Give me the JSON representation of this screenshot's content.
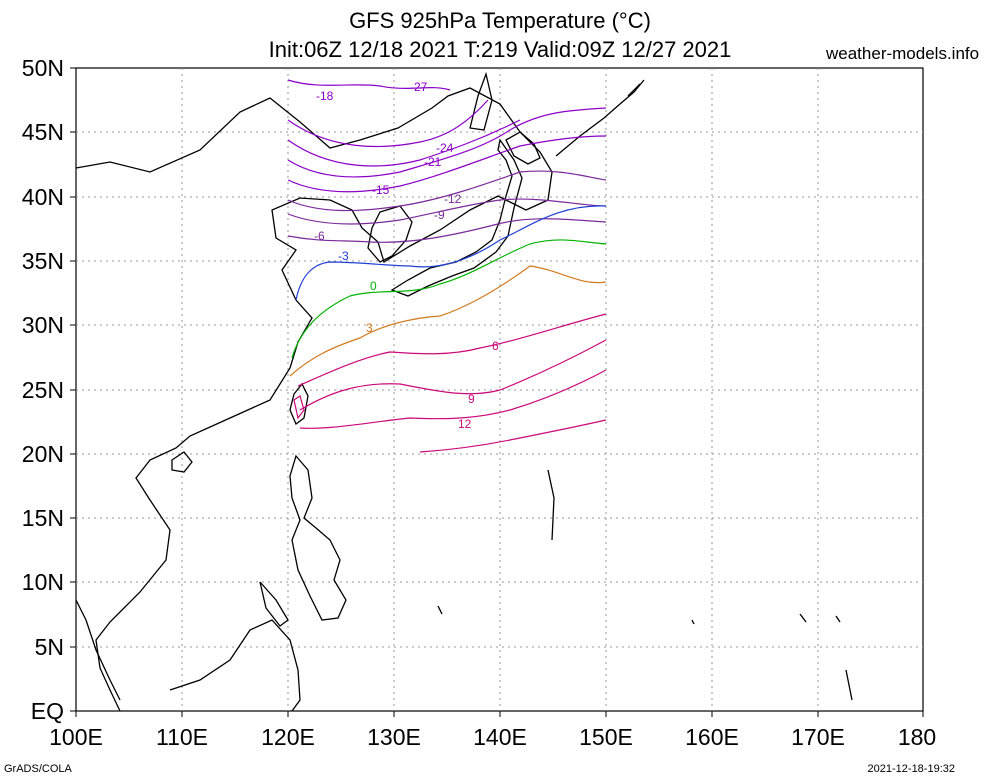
{
  "title_line1": "GFS 925hPa Temperature (°C)",
  "title_line2": "Init:06Z 12/18 2021 T:219 Valid:09Z 12/27 2021",
  "site": "weather-models.info",
  "footer_left": "GrADS/COLA",
  "footer_right": "2021-12-18-19:32",
  "axes": {
    "lat_labels": [
      "EQ",
      "5N",
      "10N",
      "15N",
      "20N",
      "25N",
      "30N",
      "35N",
      "40N",
      "45N",
      "50N"
    ],
    "lon_labels": [
      "100E",
      "110E",
      "120E",
      "130E",
      "140E",
      "150E",
      "160E",
      "170E",
      "180"
    ],
    "lat_range": [
      0,
      50
    ],
    "lon_range": [
      100,
      180
    ],
    "grid": "dotted"
  },
  "contour_labels": [
    "-27",
    "-24",
    "-21",
    "-18",
    "-15",
    "-12",
    "-9",
    "-6",
    "-3",
    "0",
    "3",
    "6",
    "9",
    "12"
  ],
  "colors": {
    "coast": "#000000",
    "cold_deep": "#8c00c8",
    "cold": "#7a2a9a",
    "minus3": "#1f3fd6",
    "zero": "#00b400",
    "plus3": "#d27a1e",
    "warm": "#cc0a7a"
  }
}
